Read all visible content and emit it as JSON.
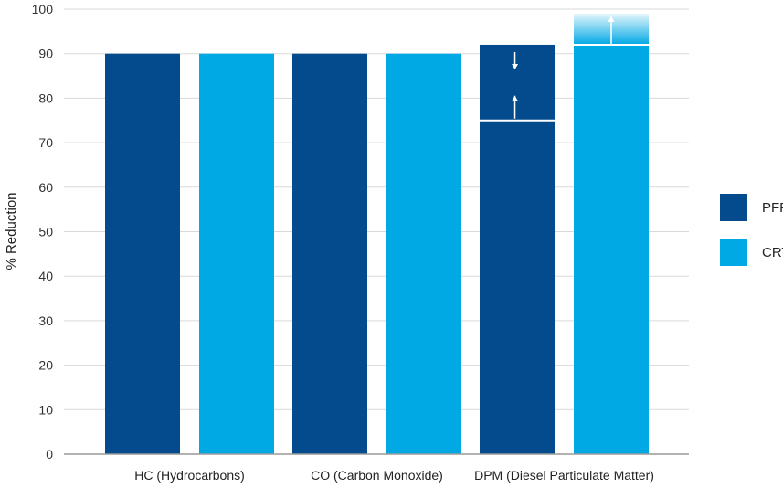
{
  "chart_data": {
    "type": "bar",
    "title": "",
    "xlabel": "",
    "ylabel": "% Reduction",
    "ylim": [
      0,
      100
    ],
    "yticks": [
      0,
      10,
      20,
      30,
      40,
      50,
      60,
      70,
      80,
      90,
      100
    ],
    "grid": true,
    "legend_position": "right",
    "categories": [
      "HC (Hydrocarbons)",
      "CO (Carbon Monoxide)",
      "DPM (Diesel Particulate Matter)"
    ],
    "series": [
      {
        "name": "PFF",
        "color": "#034b8c",
        "values": [
          90,
          90,
          92
        ],
        "ranges": [
          null,
          null,
          {
            "low": 75,
            "high": 92
          }
        ]
      },
      {
        "name": "CRT",
        "color": "#00a8e4",
        "values": [
          90,
          90,
          92
        ],
        "ranges": [
          null,
          null,
          {
            "low": 92,
            "high": 99
          }
        ]
      }
    ]
  }
}
